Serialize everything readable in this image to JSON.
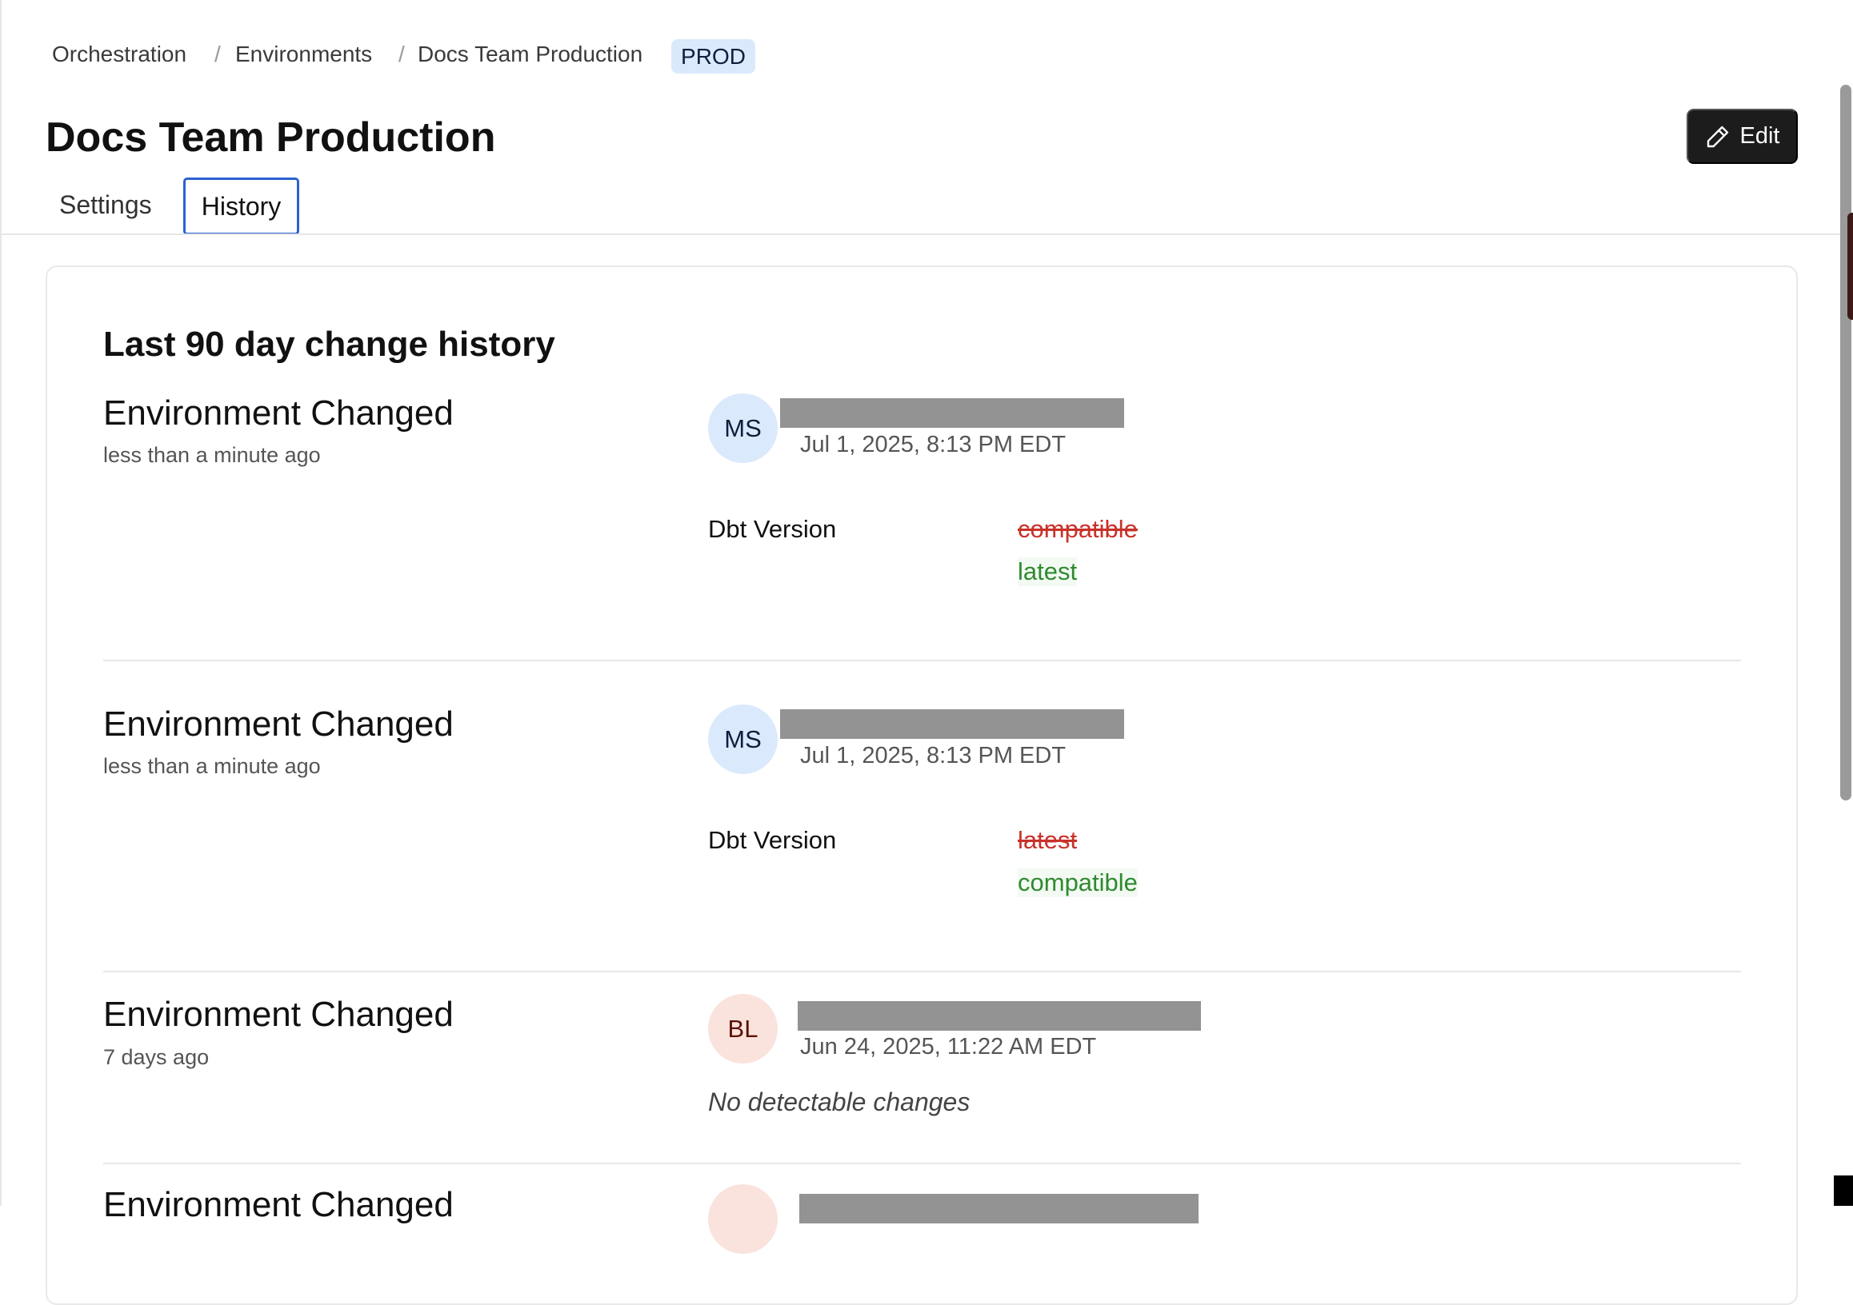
{
  "breadcrumb": {
    "items": [
      "Orchestration",
      "Environments",
      "Docs Team Production"
    ],
    "separator": "/",
    "badge": "PROD"
  },
  "header": {
    "title": "Docs Team Production",
    "edit_label": "Edit"
  },
  "tabs": [
    {
      "label": "Settings",
      "active": false
    },
    {
      "label": "History",
      "active": true
    }
  ],
  "history": {
    "heading": "Last 90 day change history",
    "entries": [
      {
        "title": "Environment Changed",
        "relative_time": "less than a minute ago",
        "initials": "MS",
        "date": "Jul 1, 2025, 8:13 PM EDT",
        "field": "Dbt Version",
        "old": "compatible",
        "new": "latest"
      },
      {
        "title": "Environment Changed",
        "relative_time": "less than a minute ago",
        "initials": "MS",
        "date": "Jul 1, 2025, 8:13 PM EDT",
        "field": "Dbt Version",
        "old": "latest",
        "new": "compatible"
      },
      {
        "title": "Environment Changed",
        "relative_time": "7 days ago",
        "initials": "BL",
        "date": "Jun 24, 2025, 11:22 AM EDT",
        "no_changes": "No detectable changes"
      },
      {
        "title": "Environment Changed"
      }
    ]
  },
  "colors": {
    "accent": "#2a62d0",
    "badge_bg": "#dbe9fc",
    "removed": "#c8322a",
    "added": "#2f8a2f"
  }
}
